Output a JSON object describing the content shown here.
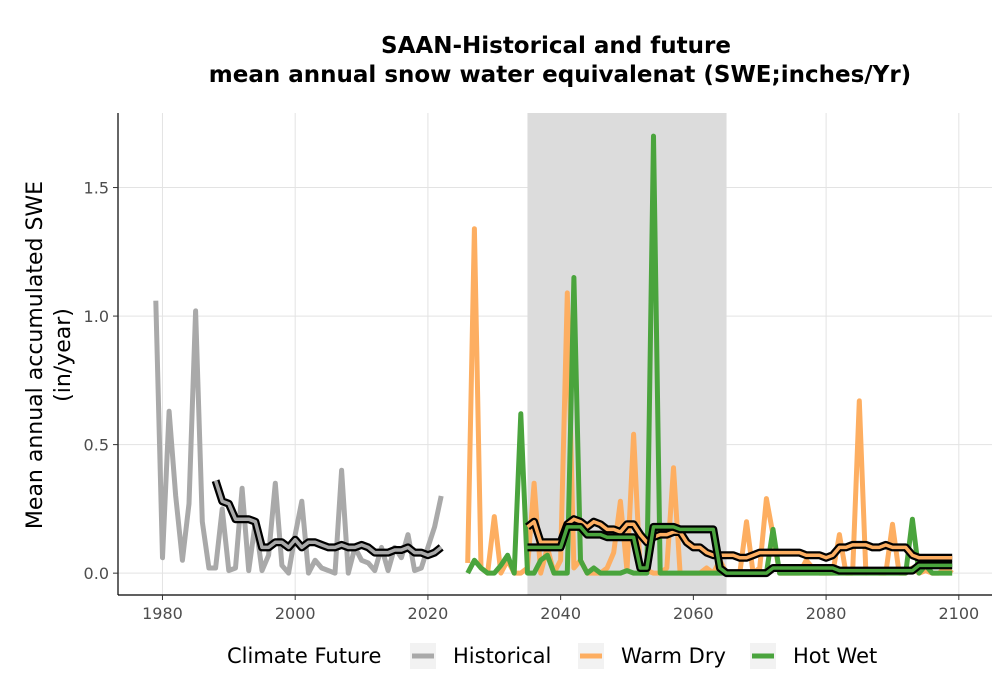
{
  "chart_data": {
    "type": "line",
    "title": "SAAN-Historical and future",
    "subtitle": "mean annual snow water equivalenat (SWE;inches/Yr)",
    "xlabel": "",
    "ylabel": "Mean annual accumulated SWE",
    "ylabel_units": "(in/year)",
    "xlim": [
      1973.3,
      2105.0
    ],
    "ylim": [
      -0.085,
      1.79
    ],
    "x_ticks": [
      1980,
      2000,
      2020,
      2040,
      2060,
      2080,
      2100
    ],
    "x_tick_labels": [
      "1980",
      "2000",
      "2020",
      "2040",
      "2060",
      "2080",
      "2100"
    ],
    "y_ticks": [
      0.0,
      0.5,
      1.0,
      1.5
    ],
    "y_tick_labels": [
      "0.0",
      "0.5",
      "1.0",
      "1.5"
    ],
    "grid": true,
    "shaded_period": [
      2035,
      2065
    ],
    "shaded_color": "#dcdcdc",
    "legend": {
      "title": "Climate Future",
      "position": "bottom",
      "items": [
        {
          "label": "Historical",
          "color": "#a9a9a9"
        },
        {
          "label": "Warm Dry",
          "color": "#fdae61"
        },
        {
          "label": "Hot Wet",
          "color": "#4aa43d"
        }
      ]
    },
    "series": [
      {
        "name": "Historical",
        "color": "#a9a9a9",
        "x": [
          1979,
          1980,
          1981,
          1982,
          1983,
          1984,
          1985,
          1986,
          1987,
          1988,
          1989,
          1990,
          1991,
          1992,
          1993,
          1994,
          1995,
          1996,
          1997,
          1998,
          1999,
          2000,
          2001,
          2002,
          2003,
          2004,
          2005,
          2006,
          2007,
          2008,
          2009,
          2010,
          2011,
          2012,
          2013,
          2014,
          2015,
          2016,
          2017,
          2018,
          2019,
          2020,
          2021,
          2022
        ],
        "values": [
          1.06,
          0.06,
          0.63,
          0.3,
          0.05,
          0.27,
          1.02,
          0.2,
          0.02,
          0.02,
          0.25,
          0.01,
          0.02,
          0.33,
          0.01,
          0.2,
          0.01,
          0.07,
          0.35,
          0.03,
          0.0,
          0.15,
          0.28,
          0.0,
          0.05,
          0.02,
          0.01,
          0.0,
          0.4,
          0.0,
          0.1,
          0.05,
          0.04,
          0.01,
          0.1,
          0.01,
          0.1,
          0.06,
          0.15,
          0.01,
          0.02,
          0.1,
          0.18,
          0.3
        ]
      },
      {
        "name": "Warm Dry",
        "color": "#fdae61",
        "x": [
          2026,
          2027,
          2028,
          2029,
          2030,
          2031,
          2032,
          2033,
          2034,
          2035,
          2036,
          2037,
          2038,
          2039,
          2040,
          2041,
          2042,
          2043,
          2044,
          2045,
          2046,
          2047,
          2048,
          2049,
          2050,
          2051,
          2052,
          2053,
          2054,
          2055,
          2056,
          2057,
          2058,
          2059,
          2060,
          2061,
          2062,
          2063,
          2064,
          2065,
          2066,
          2067,
          2068,
          2069,
          2070,
          2071,
          2072,
          2073,
          2074,
          2075,
          2076,
          2077,
          2078,
          2079,
          2080,
          2081,
          2082,
          2083,
          2084,
          2085,
          2086,
          2087,
          2088,
          2089,
          2090,
          2091,
          2092,
          2093,
          2094,
          2095,
          2096,
          2097,
          2098,
          2099
        ],
        "values": [
          0.04,
          1.34,
          0.02,
          0.0,
          0.22,
          0.0,
          0.05,
          0.0,
          0.0,
          0.02,
          0.35,
          0.0,
          0.1,
          0.0,
          0.05,
          1.09,
          0.02,
          0.05,
          0.0,
          0.0,
          0.0,
          0.02,
          0.08,
          0.28,
          0.01,
          0.54,
          0.0,
          0.01,
          0.0,
          0.0,
          0.02,
          0.41,
          0.0,
          0.0,
          0.0,
          0.0,
          0.02,
          0.0,
          0.05,
          0.0,
          0.0,
          0.0,
          0.2,
          0.0,
          0.02,
          0.29,
          0.15,
          0.0,
          0.0,
          0.0,
          0.0,
          0.05,
          0.02,
          0.0,
          0.0,
          0.0,
          0.15,
          0.0,
          0.0,
          0.67,
          0.0,
          0.01,
          0.0,
          0.0,
          0.19,
          0.0,
          0.0,
          0.02,
          0.0,
          0.01,
          0.0,
          0.0,
          0.02,
          0.0
        ]
      },
      {
        "name": "Hot Wet",
        "color": "#4aa43d",
        "x": [
          2026,
          2027,
          2028,
          2029,
          2030,
          2031,
          2032,
          2033,
          2034,
          2035,
          2036,
          2037,
          2038,
          2039,
          2040,
          2041,
          2042,
          2043,
          2044,
          2045,
          2046,
          2047,
          2048,
          2049,
          2050,
          2051,
          2052,
          2053,
          2054,
          2055,
          2056,
          2057,
          2058,
          2059,
          2060,
          2061,
          2062,
          2063,
          2064,
          2065,
          2066,
          2067,
          2068,
          2069,
          2070,
          2071,
          2072,
          2073,
          2074,
          2075,
          2076,
          2077,
          2078,
          2079,
          2080,
          2081,
          2082,
          2083,
          2084,
          2085,
          2086,
          2087,
          2088,
          2089,
          2090,
          2091,
          2092,
          2093,
          2094,
          2095,
          2096,
          2097,
          2098,
          2099
        ],
        "values": [
          0.0,
          0.05,
          0.02,
          0.0,
          0.0,
          0.03,
          0.07,
          0.0,
          0.62,
          0.0,
          0.0,
          0.05,
          0.07,
          0.0,
          0.0,
          0.0,
          1.15,
          0.05,
          0.0,
          0.02,
          0.0,
          0.0,
          0.0,
          0.0,
          0.01,
          0.0,
          0.0,
          0.0,
          1.7,
          0.0,
          0.0,
          0.0,
          0.0,
          0.0,
          0.0,
          0.0,
          0.0,
          0.0,
          0.0,
          0.0,
          0.0,
          0.0,
          0.0,
          0.0,
          0.0,
          0.0,
          0.17,
          0.0,
          0.0,
          0.0,
          0.0,
          0.0,
          0.0,
          0.0,
          0.0,
          0.0,
          0.0,
          0.0,
          0.0,
          0.0,
          0.0,
          0.0,
          0.0,
          0.0,
          0.0,
          0.0,
          0.0,
          0.21,
          0.0,
          0.03,
          0.0,
          0.0,
          0.0,
          0.0
        ]
      },
      {
        "name": "Historical",
        "style": "black-outlined",
        "color": "#a9a9a9",
        "x": [
          1988,
          1989,
          1990,
          1991,
          1992,
          1993,
          1994,
          1995,
          1996,
          1997,
          1998,
          1999,
          2000,
          2001,
          2002,
          2003,
          2004,
          2005,
          2006,
          2007,
          2008,
          2009,
          2010,
          2011,
          2012,
          2013,
          2014,
          2015,
          2016,
          2017,
          2018,
          2019,
          2020,
          2021,
          2022
        ],
        "values": [
          0.36,
          0.28,
          0.27,
          0.21,
          0.21,
          0.21,
          0.2,
          0.1,
          0.1,
          0.12,
          0.12,
          0.1,
          0.13,
          0.1,
          0.12,
          0.12,
          0.11,
          0.1,
          0.1,
          0.11,
          0.1,
          0.1,
          0.11,
          0.1,
          0.08,
          0.08,
          0.08,
          0.09,
          0.09,
          0.1,
          0.08,
          0.08,
          0.07,
          0.08,
          0.1
        ]
      },
      {
        "name": "Warm Dry",
        "style": "black-outlined",
        "color": "#fdae61",
        "x": [
          2035,
          2036,
          2037,
          2038,
          2039,
          2040,
          2041,
          2042,
          2043,
          2044,
          2045,
          2046,
          2047,
          2048,
          2049,
          2050,
          2051,
          2052,
          2053,
          2054,
          2055,
          2056,
          2057,
          2058,
          2059,
          2060,
          2061,
          2062,
          2063,
          2064,
          2065,
          2066,
          2067,
          2068,
          2069,
          2070,
          2071,
          2072,
          2073,
          2074,
          2075,
          2076,
          2077,
          2078,
          2079,
          2080,
          2081,
          2082,
          2083,
          2084,
          2085,
          2086,
          2087,
          2088,
          2089,
          2090,
          2091,
          2092,
          2093,
          2094,
          2095,
          2096,
          2097,
          2098,
          2099
        ],
        "values": [
          0.18,
          0.2,
          0.12,
          0.12,
          0.12,
          0.12,
          0.19,
          0.21,
          0.2,
          0.18,
          0.2,
          0.19,
          0.17,
          0.17,
          0.16,
          0.19,
          0.19,
          0.15,
          0.12,
          0.14,
          0.15,
          0.15,
          0.16,
          0.16,
          0.12,
          0.1,
          0.1,
          0.08,
          0.07,
          0.07,
          0.07,
          0.07,
          0.06,
          0.06,
          0.07,
          0.08,
          0.08,
          0.08,
          0.08,
          0.08,
          0.08,
          0.08,
          0.07,
          0.07,
          0.07,
          0.06,
          0.07,
          0.1,
          0.1,
          0.11,
          0.11,
          0.11,
          0.1,
          0.1,
          0.11,
          0.1,
          0.1,
          0.1,
          0.07,
          0.06,
          0.06,
          0.06,
          0.06,
          0.06,
          0.06
        ]
      },
      {
        "name": "Hot Wet",
        "style": "black-outlined",
        "color": "#4aa43d",
        "x": [
          2035,
          2036,
          2037,
          2038,
          2039,
          2040,
          2041,
          2042,
          2043,
          2044,
          2045,
          2046,
          2047,
          2048,
          2049,
          2050,
          2051,
          2052,
          2053,
          2054,
          2055,
          2056,
          2057,
          2058,
          2059,
          2060,
          2061,
          2062,
          2063,
          2064,
          2065,
          2066,
          2067,
          2068,
          2069,
          2070,
          2071,
          2072,
          2073,
          2074,
          2075,
          2076,
          2077,
          2078,
          2079,
          2080,
          2081,
          2082,
          2083,
          2084,
          2085,
          2086,
          2087,
          2088,
          2089,
          2090,
          2091,
          2092,
          2093,
          2094,
          2095,
          2096,
          2097,
          2098,
          2099
        ],
        "values": [
          0.1,
          0.1,
          0.1,
          0.1,
          0.1,
          0.1,
          0.18,
          0.18,
          0.18,
          0.15,
          0.15,
          0.15,
          0.14,
          0.14,
          0.14,
          0.14,
          0.14,
          0.02,
          0.02,
          0.18,
          0.18,
          0.18,
          0.18,
          0.17,
          0.17,
          0.17,
          0.17,
          0.17,
          0.17,
          0.02,
          0.0,
          0.0,
          0.0,
          0.0,
          0.0,
          0.0,
          0.0,
          0.02,
          0.02,
          0.02,
          0.02,
          0.02,
          0.02,
          0.02,
          0.02,
          0.02,
          0.02,
          0.01,
          0.01,
          0.01,
          0.01,
          0.01,
          0.01,
          0.01,
          0.01,
          0.01,
          0.01,
          0.01,
          0.01,
          0.03,
          0.03,
          0.03,
          0.03,
          0.03,
          0.03
        ]
      }
    ]
  }
}
